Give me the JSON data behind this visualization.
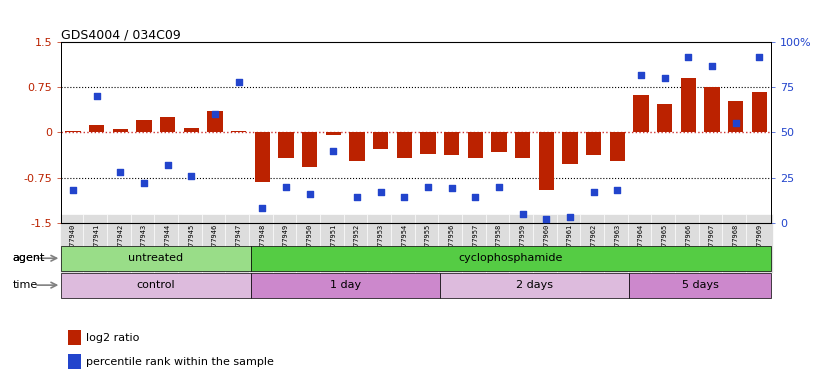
{
  "title": "GDS4004 / 034C09",
  "samples": [
    "GSM677940",
    "GSM677941",
    "GSM677942",
    "GSM677943",
    "GSM677944",
    "GSM677945",
    "GSM677946",
    "GSM677947",
    "GSM677948",
    "GSM677949",
    "GSM677950",
    "GSM677951",
    "GSM677952",
    "GSM677953",
    "GSM677954",
    "GSM677955",
    "GSM677956",
    "GSM677957",
    "GSM677958",
    "GSM677959",
    "GSM677960",
    "GSM677961",
    "GSM677962",
    "GSM677963",
    "GSM677964",
    "GSM677965",
    "GSM677966",
    "GSM677967",
    "GSM677968",
    "GSM677969"
  ],
  "log2_ratio": [
    0.03,
    0.13,
    0.05,
    0.2,
    0.25,
    0.08,
    0.35,
    0.03,
    -0.82,
    -0.42,
    -0.58,
    -0.05,
    -0.48,
    -0.28,
    -0.42,
    -0.35,
    -0.38,
    -0.42,
    -0.32,
    -0.42,
    -0.95,
    -0.52,
    -0.38,
    -0.48,
    0.62,
    0.48,
    0.9,
    0.75,
    0.52,
    0.68
  ],
  "percentile": [
    18,
    70,
    28,
    22,
    32,
    26,
    60,
    78,
    8,
    20,
    16,
    40,
    14,
    17,
    14,
    20,
    19,
    14,
    20,
    5,
    2,
    3,
    17,
    18,
    82,
    80,
    92,
    87,
    55,
    92
  ],
  "ylim_left": [
    -1.5,
    1.5
  ],
  "ylim_right": [
    0,
    100
  ],
  "bar_color": "#bb2200",
  "dot_color": "#2244cc",
  "hline_color": "#cc3333",
  "bg_color": "#ffffff",
  "tick_label_bg": "#dddddd",
  "agent_groups": [
    {
      "label": "untreated",
      "start": 0,
      "end": 8,
      "color": "#99dd88"
    },
    {
      "label": "cyclophosphamide",
      "start": 8,
      "end": 30,
      "color": "#55cc44"
    }
  ],
  "time_groups": [
    {
      "label": "control",
      "start": 0,
      "end": 8,
      "color": "#ddbbdd"
    },
    {
      "label": "1 day",
      "start": 8,
      "end": 16,
      "color": "#cc88cc"
    },
    {
      "label": "2 days",
      "start": 16,
      "end": 24,
      "color": "#ddbbdd"
    },
    {
      "label": "5 days",
      "start": 24,
      "end": 30,
      "color": "#cc88cc"
    }
  ],
  "legend_items": [
    {
      "label": "log2 ratio",
      "color": "#bb2200"
    },
    {
      "label": "percentile rank within the sample",
      "color": "#2244cc"
    }
  ],
  "yticks_left": [
    -1.5,
    -0.75,
    0,
    0.75,
    1.5
  ],
  "ytick_labels_left": [
    "-1.5",
    "-0.75",
    "0",
    "0.75",
    "1.5"
  ],
  "yticks_right": [
    0,
    25,
    50,
    75,
    100
  ],
  "ytick_labels_right": [
    "0",
    "25",
    "50",
    "75",
    "100%"
  ]
}
